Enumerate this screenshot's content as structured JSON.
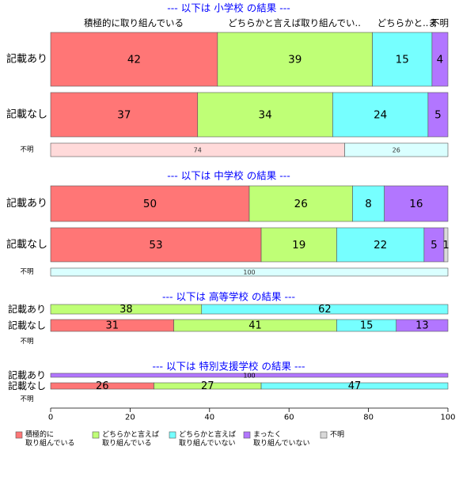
{
  "colors": {
    "sekkyoku": "#ff7676",
    "dochira_yes": "#bfff76",
    "dochira_no": "#76ffff",
    "mattaku": "#b276ff",
    "fumei": "#d9d9d9",
    "fumei_row_pink": "#ffdada",
    "fumei_row_cyan": "#daffff",
    "title": "#0000ff"
  },
  "chart_data": {
    "type": "bar",
    "orientation": "horizontal",
    "stacked": true,
    "xlim": [
      0,
      100
    ],
    "xticks": [
      "0",
      "20",
      "40",
      "60",
      "80",
      "100"
    ],
    "top_column_labels": [
      "積極的に取り組んでいる",
      "どちらかと言えば取り組んでい..",
      "どちらかと..",
      "ま",
      "不明"
    ],
    "legend": {
      "placement": "bottom",
      "entries": [
        {
          "key": "sekkyoku",
          "lines": [
            "積極的に",
            "取り組んでいる"
          ]
        },
        {
          "key": "dochira_yes",
          "lines": [
            "どちらかと言えば",
            "取り組んでいる"
          ]
        },
        {
          "key": "dochira_no",
          "lines": [
            "どちらかと言えば",
            "取り組んでいない"
          ]
        },
        {
          "key": "mattaku",
          "lines": [
            "まったく",
            "取り組んでいない"
          ]
        },
        {
          "key": "fumei",
          "lines": [
            "不明"
          ]
        }
      ]
    },
    "groups": [
      {
        "title": "--- 以下は 小学校 の結果 ---",
        "rows": [
          {
            "label": "記載あり",
            "size": "big",
            "values": [
              42,
              39,
              15,
              4,
              0
            ],
            "labels": [
              "42",
              "39",
              "15",
              "4",
              ""
            ]
          },
          {
            "label": "記載なし",
            "size": "big",
            "values": [
              37,
              34,
              24,
              5,
              0
            ],
            "labels": [
              "37",
              "34",
              "24",
              "5",
              ""
            ]
          },
          {
            "label": "不明",
            "size": "small",
            "special": "fumei",
            "values": [
              74,
              26
            ],
            "labels": [
              "74",
              "26"
            ]
          }
        ]
      },
      {
        "title": "--- 以下は 中学校 の結果 ---",
        "rows": [
          {
            "label": "記載あり",
            "size": "big",
            "values": [
              50,
              26,
              8,
              16,
              0
            ],
            "labels": [
              "50",
              "26",
              "8",
              "16",
              ""
            ]
          },
          {
            "label": "記載なし",
            "size": "big",
            "values": [
              53,
              19,
              22,
              5,
              1
            ],
            "labels": [
              "53",
              "19",
              "22",
              "5",
              "1"
            ]
          },
          {
            "label": "不明",
            "size": "small",
            "special": "fumei_cyan",
            "values": [
              0,
              100
            ],
            "labels": [
              "",
              "100"
            ]
          }
        ]
      },
      {
        "title": "--- 以下は 高等学校 の結果 ---",
        "rows": [
          {
            "label": "記載あり",
            "size": "medium",
            "values": [
              0,
              38,
              62,
              0,
              0
            ],
            "labels": [
              "",
              "38",
              "62",
              "",
              ""
            ]
          },
          {
            "label": "記載なし",
            "size": "medium",
            "values": [
              31,
              41,
              15,
              13,
              0
            ],
            "labels": [
              "31",
              "41",
              "15",
              "13",
              ""
            ]
          },
          {
            "label": "不明",
            "size": "small",
            "empty": true,
            "values": [],
            "labels": []
          }
        ]
      },
      {
        "title": "--- 以下は 特別支援学校 の結果 ---",
        "rows": [
          {
            "label": "記載あり",
            "size": "tiny",
            "values": [
              0,
              0,
              0,
              100,
              0
            ],
            "labels": [
              "",
              "",
              "",
              "100",
              ""
            ]
          },
          {
            "label": "記載なし",
            "size": "medium",
            "values": [
              26,
              27,
              47,
              0,
              0
            ],
            "labels": [
              "26",
              "27",
              "47",
              "",
              ""
            ]
          },
          {
            "label": "不明",
            "size": "small",
            "empty": true,
            "values": [],
            "labels": []
          }
        ]
      }
    ]
  }
}
